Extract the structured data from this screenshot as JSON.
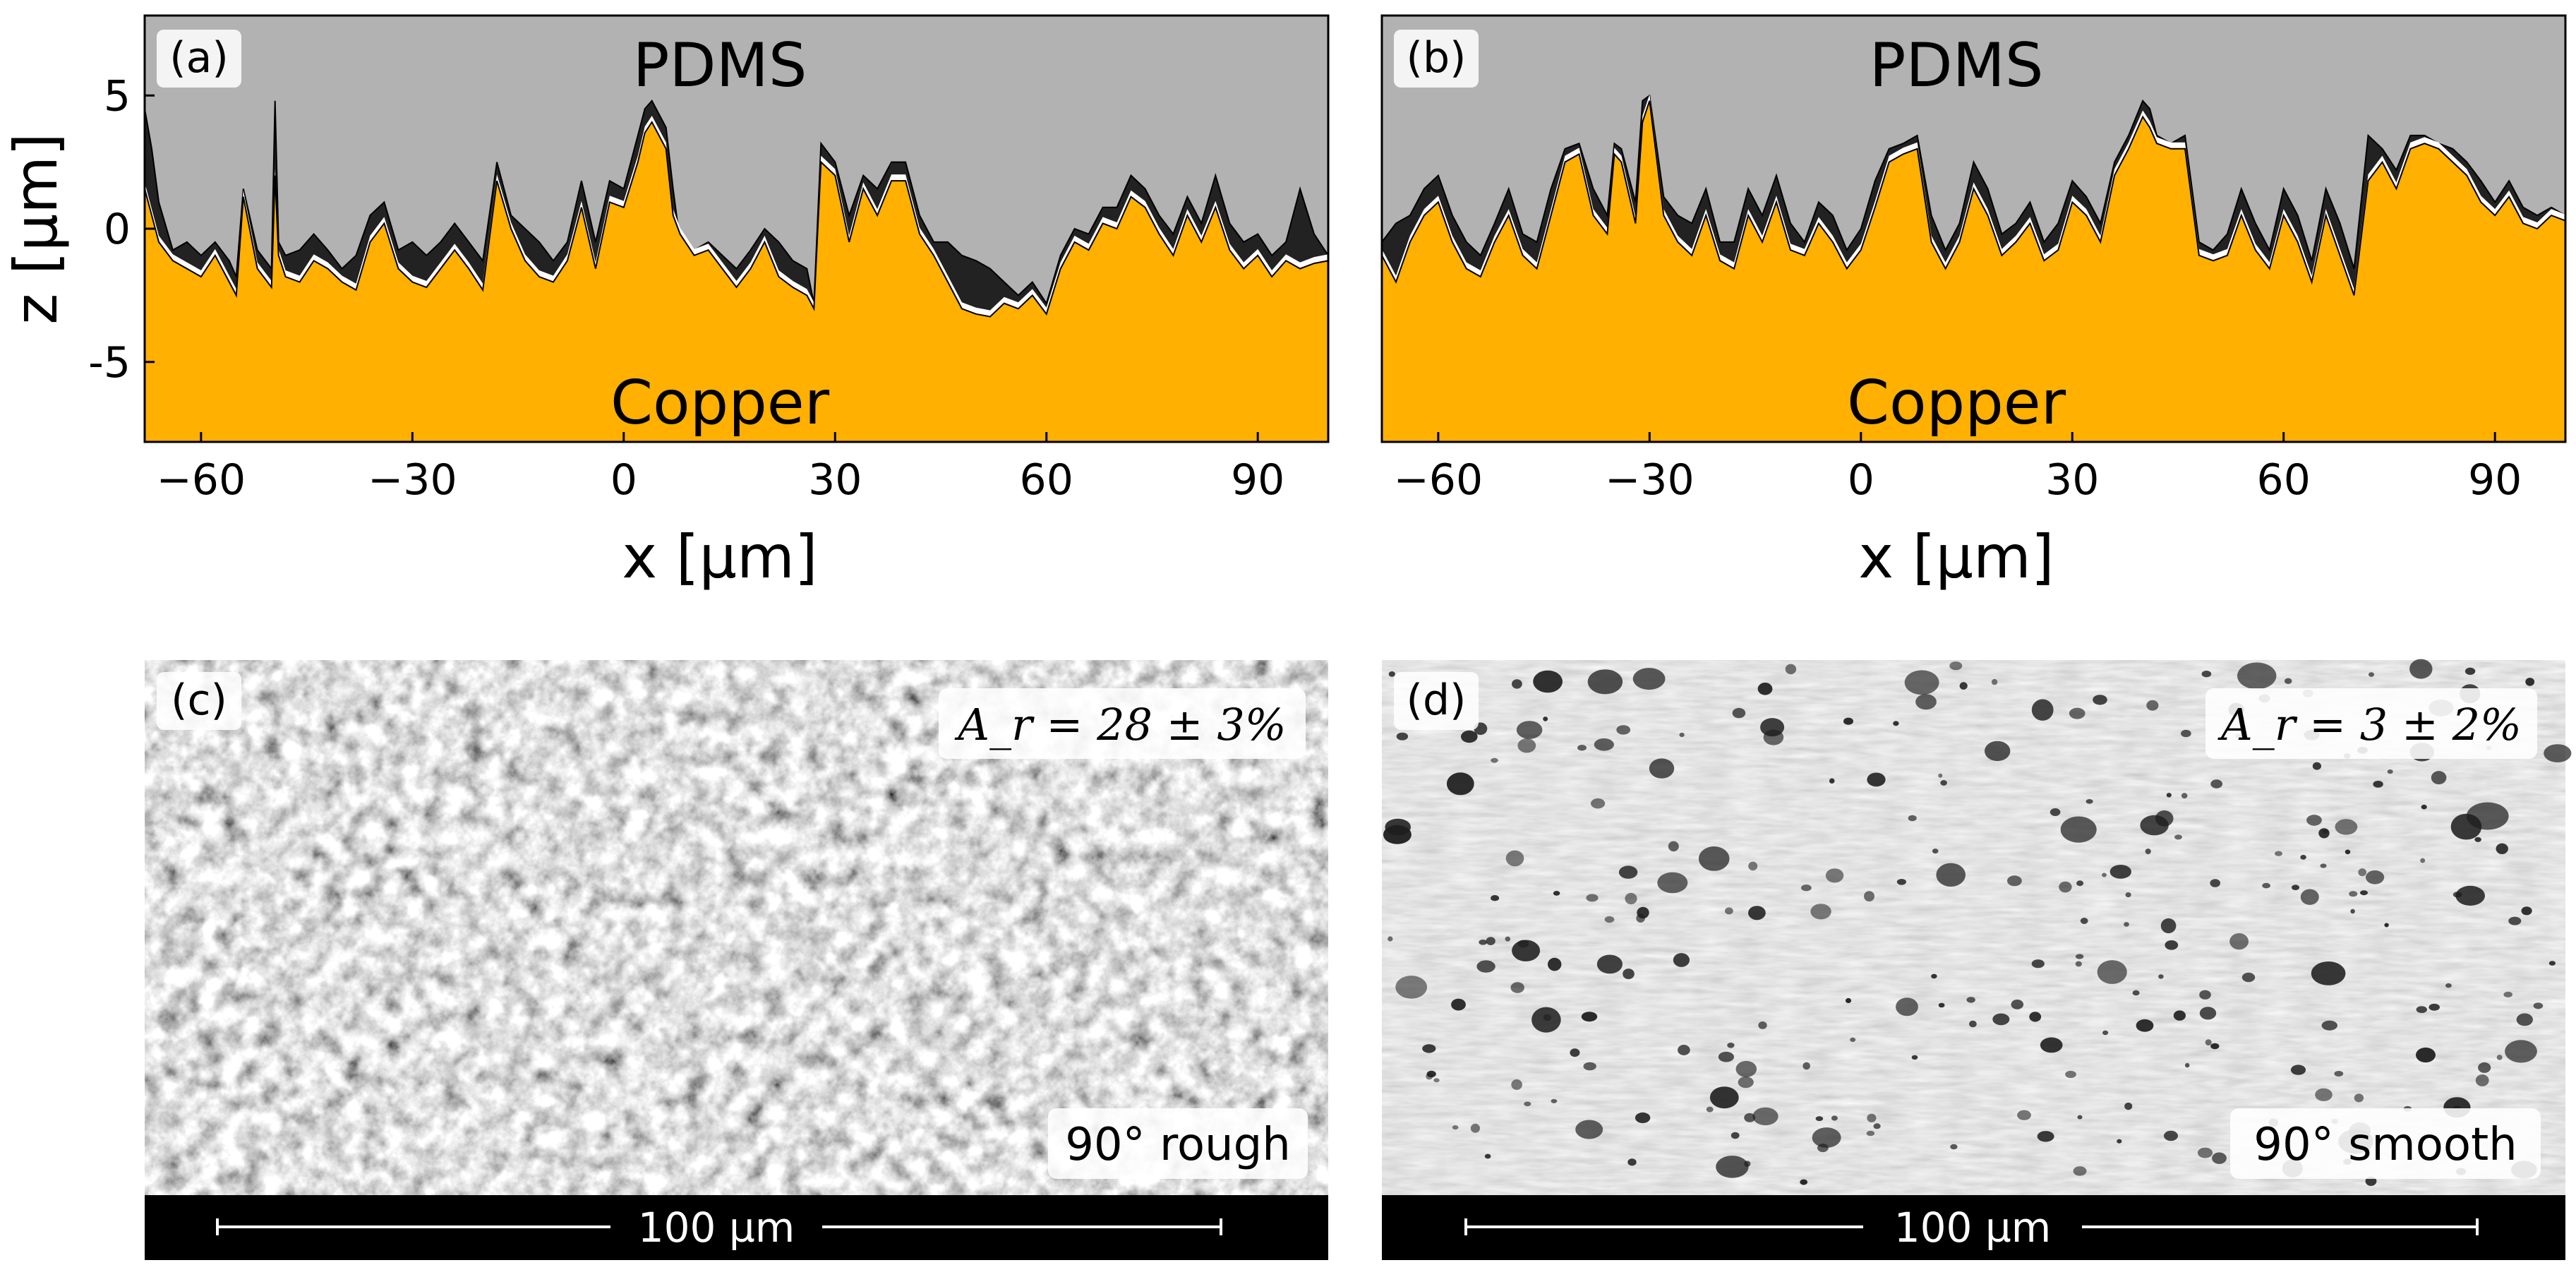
{
  "chart_data": [
    {
      "type": "area",
      "panel": "(a)",
      "top_label": "PDMS",
      "bottom_label": "Copper",
      "xlabel": "x [µm]",
      "ylabel": "z [µm]",
      "xlim": [
        -68,
        100
      ],
      "ylim": [
        -8,
        8
      ],
      "xticks": [
        -60,
        -30,
        0,
        30,
        60,
        90
      ],
      "xtick_labels": [
        "−60",
        "−30",
        "0",
        "30",
        "60",
        "90"
      ],
      "yticks": [
        5,
        0,
        -5
      ],
      "ytick_labels": [
        "5",
        "0",
        "-5"
      ],
      "series": [
        {
          "name": "copper surface",
          "color": "#FFB000",
          "x": [
            -68,
            -67,
            -66,
            -64,
            -62,
            -60,
            -58,
            -56,
            -55,
            -54,
            -52,
            -50,
            -49.5,
            -49,
            -48,
            -46,
            -44,
            -42,
            -40,
            -38,
            -36,
            -34,
            -32,
            -30,
            -28,
            -26,
            -24,
            -22,
            -20,
            -18,
            -16,
            -14,
            -12,
            -10,
            -8,
            -6,
            -4,
            -2,
            0,
            2,
            3,
            4,
            6,
            7,
            8,
            10,
            12,
            14,
            16,
            18,
            20,
            22,
            24,
            26,
            27,
            28,
            30,
            32,
            34,
            36,
            38,
            40,
            42,
            44,
            46,
            48,
            50,
            52,
            54,
            56,
            58,
            60,
            62,
            64,
            66,
            68,
            70,
            72,
            74,
            76,
            78,
            80,
            82,
            84,
            86,
            88,
            90,
            92,
            94,
            96,
            98,
            100
          ],
          "y": [
            1.5,
            0.5,
            -0.5,
            -1.2,
            -1.5,
            -1.8,
            -1.0,
            -2.0,
            -2.5,
            1.2,
            -1.5,
            -2.2,
            2.0,
            -1.0,
            -1.8,
            -2.0,
            -1.2,
            -1.5,
            -2.0,
            -2.3,
            -0.5,
            0.2,
            -1.5,
            -2.0,
            -2.2,
            -1.5,
            -0.8,
            -1.5,
            -2.3,
            1.8,
            0.0,
            -1.2,
            -1.8,
            -2.0,
            -1.2,
            0.8,
            -1.5,
            1.0,
            0.8,
            2.5,
            3.6,
            4.0,
            3.0,
            0.5,
            -0.2,
            -1.0,
            -0.8,
            -1.5,
            -2.2,
            -1.5,
            -0.5,
            -1.8,
            -2.2,
            -2.5,
            -3.0,
            2.5,
            2.0,
            -0.5,
            1.5,
            0.5,
            1.8,
            1.8,
            -0.2,
            -1.0,
            -2.0,
            -3.0,
            -3.2,
            -3.3,
            -2.8,
            -3.0,
            -2.5,
            -3.2,
            -1.5,
            -0.5,
            -0.8,
            0.2,
            0.0,
            1.2,
            0.8,
            -0.2,
            -1.0,
            0.5,
            -0.5,
            0.8,
            -0.8,
            -1.5,
            -1.0,
            -1.8,
            -1.2,
            -1.5,
            -1.3,
            -1.2
          ]
        },
        {
          "name": "PDMS surface",
          "color": "#222222",
          "x": [
            -68,
            -67,
            -66,
            -64,
            -62,
            -60,
            -58,
            -56,
            -55,
            -54,
            -52,
            -50,
            -49.5,
            -49,
            -48,
            -46,
            -44,
            -42,
            -40,
            -38,
            -36,
            -34,
            -32,
            -30,
            -28,
            -26,
            -24,
            -22,
            -20,
            -18,
            -16,
            -14,
            -12,
            -10,
            -8,
            -6,
            -4,
            -2,
            0,
            2,
            3,
            4,
            6,
            7,
            8,
            10,
            12,
            14,
            16,
            18,
            20,
            22,
            24,
            26,
            27,
            28,
            30,
            32,
            34,
            36,
            38,
            40,
            42,
            44,
            46,
            48,
            50,
            52,
            54,
            56,
            58,
            60,
            62,
            64,
            66,
            68,
            70,
            72,
            74,
            76,
            78,
            80,
            82,
            84,
            86,
            88,
            90,
            92,
            94,
            96,
            98,
            100
          ],
          "y": [
            4.5,
            3.0,
            1.0,
            -0.8,
            -0.5,
            -1.0,
            -0.5,
            -1.2,
            -1.8,
            1.5,
            -0.8,
            -1.5,
            4.8,
            -0.5,
            -1.0,
            -0.8,
            -0.2,
            -0.8,
            -1.5,
            -1.0,
            0.5,
            1.0,
            -0.8,
            -0.5,
            -1.0,
            -0.5,
            0.2,
            -0.5,
            -1.2,
            2.5,
            0.5,
            0.0,
            -0.5,
            -1.2,
            -0.5,
            1.8,
            -0.5,
            1.8,
            1.5,
            3.5,
            4.5,
            4.8,
            3.8,
            1.5,
            -0.5,
            -0.8,
            -0.5,
            -1.0,
            -1.5,
            -0.8,
            0.0,
            -0.5,
            -1.2,
            -1.5,
            -2.8,
            3.2,
            2.5,
            0.5,
            2.0,
            1.5,
            2.5,
            2.5,
            0.5,
            -0.5,
            -0.5,
            -1.0,
            -1.2,
            -1.5,
            -2.0,
            -2.5,
            -2.0,
            -2.8,
            -1.0,
            0.0,
            -0.2,
            0.8,
            0.8,
            2.0,
            1.5,
            0.5,
            -0.2,
            1.2,
            0.2,
            2.0,
            0.2,
            -0.5,
            -0.2,
            -1.0,
            -0.5,
            1.5,
            -0.2,
            -1.0
          ]
        }
      ]
    },
    {
      "type": "area",
      "panel": "(b)",
      "top_label": "PDMS",
      "bottom_label": "Copper",
      "xlabel": "x [µm]",
      "ylabel": "z [µm]",
      "xlim": [
        -68,
        100
      ],
      "ylim": [
        -8,
        8
      ],
      "xticks": [
        -60,
        -30,
        0,
        30,
        60,
        90
      ],
      "xtick_labels": [
        "−60",
        "−30",
        "0",
        "30",
        "60",
        "90"
      ],
      "series": [
        {
          "name": "copper surface",
          "color": "#FFB000",
          "x": [
            -68,
            -66,
            -64,
            -62,
            -60,
            -58,
            -56,
            -54,
            -52,
            -50,
            -48,
            -46,
            -44,
            -42,
            -40,
            -38,
            -36,
            -35,
            -34,
            -32,
            -31,
            -30,
            -28,
            -26,
            -24,
            -22,
            -20,
            -18,
            -16,
            -14,
            -12,
            -10,
            -8,
            -6,
            -4,
            -2,
            0,
            2,
            4,
            6,
            8,
            10,
            12,
            14,
            16,
            18,
            20,
            22,
            24,
            26,
            28,
            30,
            32,
            34,
            36,
            38,
            40,
            41,
            42,
            44,
            46,
            48,
            50,
            52,
            54,
            56,
            58,
            60,
            62,
            64,
            66,
            68,
            70,
            72,
            74,
            76,
            78,
            80,
            82,
            84,
            86,
            88,
            90,
            92,
            94,
            96,
            98,
            100
          ],
          "y": [
            -1.0,
            -2.0,
            -0.5,
            0.5,
            1.0,
            -0.5,
            -1.5,
            -1.8,
            -0.5,
            0.5,
            -1.0,
            -1.5,
            0.5,
            2.5,
            2.8,
            0.5,
            -0.2,
            2.8,
            2.5,
            0.2,
            4.0,
            4.8,
            0.5,
            -0.5,
            -1.0,
            0.5,
            -1.2,
            -1.5,
            0.5,
            -0.5,
            1.0,
            -0.8,
            -1.0,
            0.2,
            -0.5,
            -1.5,
            -0.8,
            0.8,
            2.5,
            2.8,
            3.0,
            -0.5,
            -1.5,
            -0.5,
            1.5,
            0.5,
            -1.0,
            -0.5,
            0.2,
            -1.2,
            -0.8,
            1.0,
            0.5,
            -0.5,
            2.0,
            3.0,
            4.2,
            3.8,
            3.2,
            3.0,
            3.0,
            -1.0,
            -1.2,
            -1.0,
            0.5,
            -0.8,
            -1.5,
            0.5,
            -0.5,
            -2.0,
            0.5,
            -1.0,
            -2.5,
            1.8,
            2.5,
            1.5,
            3.0,
            3.2,
            3.0,
            2.5,
            2.0,
            1.0,
            0.5,
            1.2,
            0.2,
            0.0,
            0.5,
            0.3
          ]
        },
        {
          "name": "PDMS surface",
          "color": "#222222",
          "x": [
            -68,
            -66,
            -64,
            -62,
            -60,
            -58,
            -56,
            -54,
            -52,
            -50,
            -48,
            -46,
            -44,
            -42,
            -40,
            -38,
            -36,
            -35,
            -34,
            -32,
            -31,
            -30,
            -28,
            -26,
            -24,
            -22,
            -20,
            -18,
            -16,
            -14,
            -12,
            -10,
            -8,
            -6,
            -4,
            -2,
            0,
            2,
            4,
            6,
            8,
            10,
            12,
            14,
            16,
            18,
            20,
            22,
            24,
            26,
            28,
            30,
            32,
            34,
            36,
            38,
            40,
            41,
            42,
            44,
            46,
            48,
            50,
            52,
            54,
            56,
            58,
            60,
            62,
            64,
            66,
            68,
            70,
            72,
            74,
            76,
            78,
            80,
            82,
            84,
            86,
            88,
            90,
            92,
            94,
            96,
            98,
            100
          ],
          "y": [
            -0.5,
            0.2,
            0.5,
            1.5,
            2.0,
            0.5,
            -0.5,
            -1.0,
            0.2,
            1.5,
            -0.2,
            -0.5,
            1.5,
            3.0,
            3.2,
            1.5,
            0.5,
            3.2,
            3.0,
            1.0,
            4.8,
            5.0,
            1.2,
            0.5,
            0.2,
            1.5,
            -0.5,
            -0.5,
            1.5,
            0.5,
            2.0,
            0.2,
            -0.5,
            1.0,
            0.5,
            -0.8,
            0.0,
            1.8,
            3.0,
            3.2,
            3.5,
            0.5,
            -0.8,
            0.2,
            2.5,
            1.5,
            -0.2,
            0.2,
            1.0,
            -0.5,
            0.2,
            1.8,
            1.2,
            0.2,
            2.5,
            3.5,
            4.8,
            4.5,
            3.5,
            3.2,
            3.5,
            -0.5,
            -0.8,
            -0.2,
            1.5,
            0.2,
            -0.8,
            1.5,
            0.5,
            -1.2,
            1.5,
            0.2,
            -1.5,
            3.5,
            3.0,
            2.2,
            3.5,
            3.5,
            3.2,
            3.0,
            2.5,
            1.8,
            1.0,
            1.8,
            0.8,
            0.5,
            0.8,
            0.5
          ]
        }
      ]
    }
  ],
  "panel_c": {
    "label": "(c)",
    "area_text": "A_r = 28 ± 3%",
    "tag": "90° rough",
    "scale_bar": "100 µm"
  },
  "panel_d": {
    "label": "(d)",
    "area_text": "A_r = 3 ± 2%",
    "tag": "90° smooth",
    "scale_bar": "100 µm"
  },
  "colors": {
    "copper": "#FFB000",
    "pdms": "#B2B2B2",
    "contact": "#222222",
    "gap": "#FFFFFF"
  }
}
